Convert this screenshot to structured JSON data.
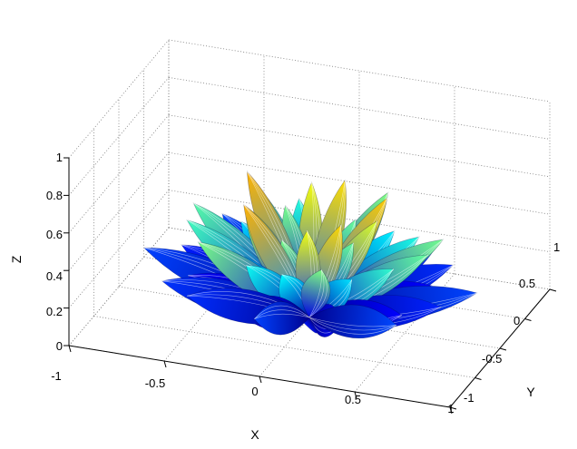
{
  "chart_data": {
    "type": "surface",
    "title": "",
    "xlabel": "X",
    "ylabel": "Y",
    "zlabel": "Z",
    "xlim": [
      -1,
      1
    ],
    "ylim": [
      -1,
      1
    ],
    "zlim": [
      0,
      1
    ],
    "x_ticks": [
      "-1",
      "-0.5",
      "0",
      "0.5",
      "1"
    ],
    "y_ticks": [
      "-1",
      "-0.5",
      "0",
      "0.5",
      "1"
    ],
    "z_ticks": [
      "0",
      "0.2",
      "0.4",
      "0.6",
      "0.8",
      "1"
    ],
    "grid": true,
    "colormap": "jet",
    "colormap_colors": [
      "#00008f",
      "#0000ff",
      "#00ffff",
      "#ffff00",
      "#ff0000",
      "#800000"
    ]
  }
}
